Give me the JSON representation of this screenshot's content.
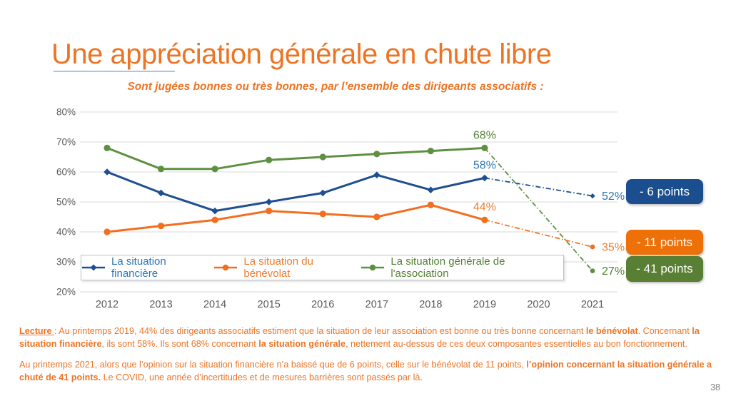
{
  "slide": {
    "title": "Une appréciation générale en chute libre",
    "subtitle": "Sont jugées bonnes ou très bonnes, par l’ensemble des dirigeants associatifs :",
    "page_number": "38",
    "colors": {
      "title_orange": "#ED7424",
      "text_orange": "#ED7424",
      "underline_blue": "#A9C5E8",
      "axis_text": "#595959",
      "gridline": "#D9D9D9",
      "page_number_gray": "#7F7F7F"
    }
  },
  "chart_data": {
    "type": "line",
    "x": [
      2012,
      2013,
      2014,
      2015,
      2016,
      2017,
      2018,
      2019,
      2020,
      2021
    ],
    "ylim": [
      20,
      80
    ],
    "ytick_step": 10,
    "ytick_suffix": "%",
    "grid": true,
    "legend_position": "bottom-inside",
    "dash_start_index": 7,
    "series": [
      {
        "name": "La situation financière",
        "color": "#1F4E91",
        "label_color": "#2E75B6",
        "marker": "diamond",
        "values": [
          60,
          53,
          47,
          50,
          53,
          59,
          54,
          58,
          null,
          52
        ],
        "label_2019": "58%",
        "label_2021": "52%"
      },
      {
        "name": "La situation du bénévolat",
        "color": "#F26E21",
        "label_color": "#ED7D31",
        "marker": "circle",
        "values": [
          40,
          42,
          44,
          47,
          46,
          45,
          49,
          44,
          null,
          35
        ],
        "label_2019": "44%",
        "label_2021": "35%"
      },
      {
        "name": "La situation générale de l'association",
        "color": "#5E9041",
        "label_color": "#548235",
        "marker": "circle",
        "values": [
          68,
          61,
          61,
          64,
          65,
          66,
          67,
          68,
          null,
          27
        ],
        "label_2019": "68%",
        "label_2021": "27%"
      }
    ]
  },
  "badges": [
    {
      "label": "- 6 points",
      "color": "#1B4E8E"
    },
    {
      "label": "- 11 points",
      "color": "#EE7008"
    },
    {
      "label": "- 41 points",
      "color": "#587F33"
    }
  ],
  "paragraphs": {
    "lecture": [
      {
        "t": "Lecture ",
        "b": true,
        "u": true
      },
      {
        "t": ": Au printemps 2019, 44% des dirigeants associatifs estiment que la situation de leur association est bonne ou très bonne concernant "
      },
      {
        "t": "le bénévolat",
        "b": true
      },
      {
        "t": ". Concernant "
      },
      {
        "t": "la situation financière",
        "b": true
      },
      {
        "t": ", ils sont 58%. Ils sont 68% concernant "
      },
      {
        "t": "la situation générale",
        "b": true
      },
      {
        "t": ", nettement au-dessus de ces deux composantes essentielles au bon fonctionnement."
      }
    ],
    "printemps2021": [
      {
        "t": "Au printemps 2021, alors que l’opinion sur la situation financière n’a baissé que de 6 points, celle sur le bénévolat de 11 points, "
      },
      {
        "t": "l’opinion concernant la situation générale a chuté de 41 points.",
        "b": true
      },
      {
        "t": " Le COVID, une année d’incertitudes et de mesures barrières sont passés par là."
      }
    ]
  }
}
